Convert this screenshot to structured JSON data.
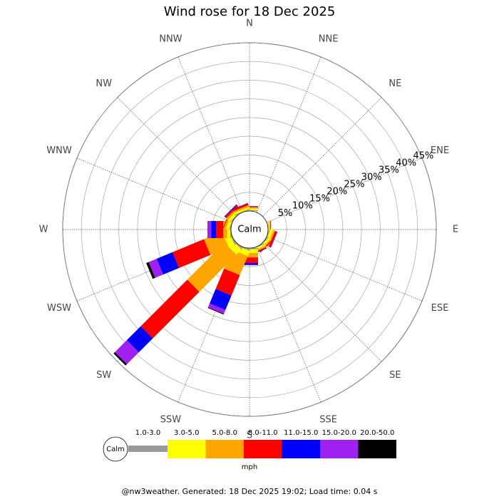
{
  "chart_data": {
    "type": "windrose",
    "title": "Wind rose for 18 Dec 2025",
    "directions": [
      "N",
      "NNE",
      "NE",
      "ENE",
      "E",
      "ESE",
      "SE",
      "SSE",
      "S",
      "SSW",
      "SW",
      "WSW",
      "W",
      "WNW",
      "NW",
      "NNW"
    ],
    "series": [
      {
        "name": "1.0-3.0",
        "color": "#999999",
        "values": [
          0.2,
          0,
          0,
          0,
          0.1,
          0.2,
          0.2,
          0.2,
          0.3,
          0.3,
          0.3,
          0.3,
          0.2,
          0.2,
          0.2,
          0.2
        ]
      },
      {
        "name": "3.0-5.0",
        "color": "#ffff00",
        "values": [
          0.5,
          0,
          0,
          0,
          0.3,
          0.8,
          0.6,
          0.5,
          1,
          1.5,
          2,
          1.7,
          0.8,
          0.8,
          0.8,
          0.5
        ]
      },
      {
        "name": "5.0-8.0",
        "color": "#ffa500",
        "values": [
          0.3,
          0,
          0,
          0,
          0.2,
          0.5,
          0.4,
          0.4,
          1.2,
          5.5,
          14,
          5.3,
          1.1,
          0.6,
          0.6,
          0.5
        ]
      },
      {
        "name": "8.0-11.0",
        "color": "#ff0000",
        "values": [
          0.2,
          0,
          0,
          0,
          0.2,
          0.6,
          0.3,
          0.3,
          1.5,
          5.9,
          17.6,
          9.1,
          1.9,
          0.2,
          0.5,
          0.5
        ]
      },
      {
        "name": "11.0-15.0",
        "color": "#0000ff",
        "values": [
          0.1,
          0,
          0,
          0,
          0,
          0.1,
          0,
          0.1,
          0.5,
          4.2,
          5.3,
          4.6,
          1.3,
          0,
          0.2,
          0.1
        ]
      },
      {
        "name": "15.0-20.0",
        "color": "#a020f0",
        "values": [
          0,
          0,
          0,
          0,
          0,
          0,
          0,
          0,
          0.1,
          1.1,
          4.5,
          2.3,
          1.0,
          0,
          0,
          0
        ]
      },
      {
        "name": "20.0-50.0",
        "color": "#000000",
        "values": [
          0,
          0,
          0,
          0,
          0,
          0,
          0,
          0,
          0,
          0.2,
          0.5,
          0.7,
          0,
          0,
          0,
          0
        ]
      }
    ],
    "rlim": [
      0,
      45
    ],
    "rticks": [
      {
        "value": 5,
        "label": "5%"
      },
      {
        "value": 10,
        "label": "10%"
      },
      {
        "value": 15,
        "label": "15%"
      },
      {
        "value": 20,
        "label": "20%"
      },
      {
        "value": 25,
        "label": "25%"
      },
      {
        "value": 30,
        "label": "30%"
      },
      {
        "value": 35,
        "label": "35%"
      },
      {
        "value": 40,
        "label": "40%"
      },
      {
        "value": 45,
        "label": "45%"
      }
    ],
    "calm_label": "Calm",
    "unit": "mph",
    "footer": "@nw3weather. Generated: 18 Dec 2025 19:02; Load time: 0.04 s"
  }
}
